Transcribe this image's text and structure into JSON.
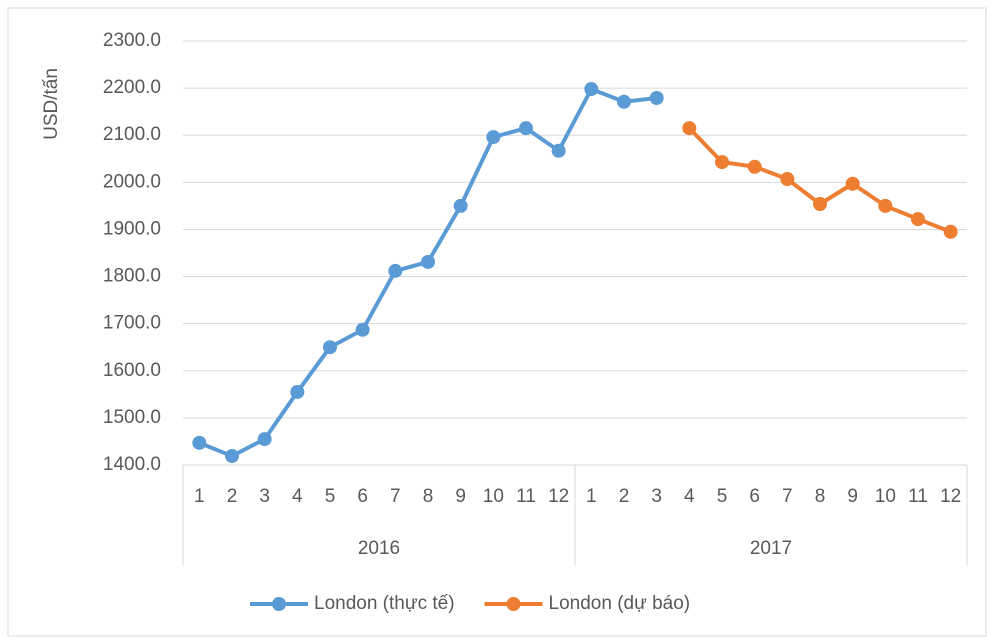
{
  "chart_data": {
    "type": "line",
    "y_label": "USD/tấn",
    "categories": [
      "1",
      "2",
      "3",
      "4",
      "5",
      "6",
      "7",
      "8",
      "9",
      "10",
      "11",
      "12",
      "1",
      "2",
      "3",
      "4",
      "5",
      "6",
      "7",
      "8",
      "9",
      "10",
      "11",
      "12"
    ],
    "category_groups": [
      "2016",
      "2017"
    ],
    "series": [
      {
        "name": "London (thực tế)",
        "color": "#5b9bd5",
        "values": [
          1447,
          1419,
          1455,
          1555,
          1650,
          1687,
          1812,
          1831,
          1950,
          2096,
          2115,
          2067,
          2198,
          2171,
          2179,
          null,
          null,
          null,
          null,
          null,
          null,
          null,
          null,
          null
        ]
      },
      {
        "name": "London (dự báo)",
        "color": "#ed7d31",
        "values": [
          null,
          null,
          null,
          null,
          null,
          null,
          null,
          null,
          null,
          null,
          null,
          null,
          null,
          null,
          null,
          2115,
          2043,
          2033,
          2007,
          1954,
          1997,
          1950,
          1922,
          1895
        ]
      }
    ],
    "ylim": [
      1400,
      2300
    ],
    "yticks": [
      {
        "value": 1400,
        "label": "1400.0"
      },
      {
        "value": 1500,
        "label": "1500.0"
      },
      {
        "value": 1600,
        "label": "1600.0"
      },
      {
        "value": 1700,
        "label": "1700.0"
      },
      {
        "value": 1800,
        "label": "1800.0"
      },
      {
        "value": 1900,
        "label": "1900.0"
      },
      {
        "value": 2000,
        "label": "2000.0"
      },
      {
        "value": 2100,
        "label": "2100.0"
      },
      {
        "value": 2200,
        "label": "2200.0"
      },
      {
        "value": 2300,
        "label": "2300.0"
      }
    ],
    "grid": true,
    "legend": "bottom"
  }
}
